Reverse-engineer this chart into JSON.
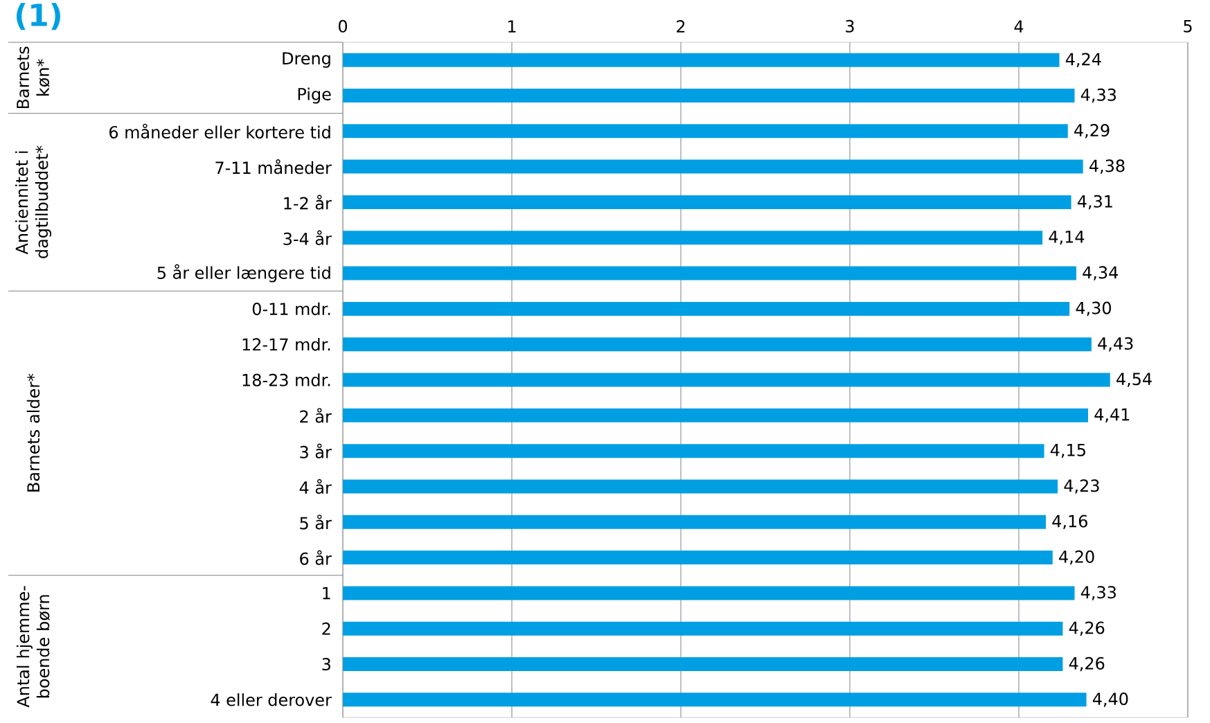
{
  "chart_data": {
    "type": "bar",
    "orientation": "horizontal",
    "title": "(1)",
    "categories": [
      "Dreng",
      "Pige",
      "6 måneder eller kortere tid",
      "7-11 måneder",
      "1-2 år",
      "3-4 år",
      "5 år eller længere tid",
      "0-11 mdr.",
      "12-17 mdr.",
      "18-23 mdr.",
      "2 år",
      "3 år",
      "4 år",
      "5 år",
      "6 år",
      "1",
      "2",
      "3",
      "4 eller derover"
    ],
    "values": [
      4.24,
      4.33,
      4.29,
      4.38,
      4.31,
      4.14,
      4.34,
      4.3,
      4.43,
      4.54,
      4.41,
      4.15,
      4.23,
      4.16,
      4.2,
      4.33,
      4.26,
      4.26,
      4.4
    ],
    "value_labels": [
      "4,24",
      "4,33",
      "4,29",
      "4,38",
      "4,31",
      "4,14",
      "4,34",
      "4,30",
      "4,43",
      "4,54",
      "4,41",
      "4,15",
      "4,23",
      "4,16",
      "4,20",
      "4,33",
      "4,26",
      "4,26",
      "4,40"
    ],
    "color": "#009fe3",
    "xlim": [
      0,
      5
    ],
    "xticks": [
      0,
      1,
      2,
      3,
      4,
      5
    ],
    "grid": "x",
    "annotations": [
      "Barnets køn*",
      "Anciennitet i dagtilbuddet*",
      "Barnets alder*",
      "Antal hjemme-boende børn"
    ]
  }
}
